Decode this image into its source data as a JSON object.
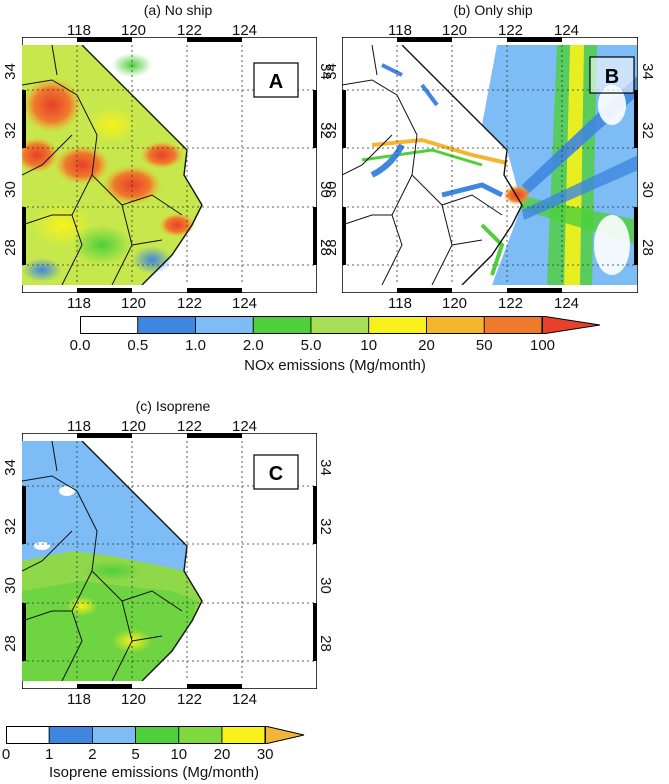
{
  "panels": {
    "a": {
      "title": "(a) No ship",
      "badge": "A"
    },
    "b": {
      "title": "(b) Only ship",
      "badge": "B"
    },
    "c": {
      "title": "(c) Isoprene",
      "badge": "C"
    }
  },
  "axes": {
    "lon_ticks": [
      "118",
      "120",
      "122",
      "124"
    ],
    "lat_ticks": [
      "34",
      "32",
      "30",
      "28"
    ]
  },
  "nox_colorbar": {
    "label": "NOx emissions (Mg/month)",
    "ticks": [
      "0.0",
      "0.5",
      "1.0",
      "2.0",
      "5.0",
      "10",
      "20",
      "50",
      "100"
    ],
    "colors": [
      "#ffffff",
      "#3f86e0",
      "#7dbcf4",
      "#4fcf3a",
      "#a7e056",
      "#f7f21c",
      "#f5b62f",
      "#ef7a2c",
      "#e8402a"
    ]
  },
  "isoprene_colorbar": {
    "label": "Isoprene emissions (Mg/month)",
    "ticks": [
      "0",
      "1",
      "2",
      "5",
      "10",
      "20",
      "30"
    ],
    "colors": [
      "#ffffff",
      "#3f86e0",
      "#7dbcf4",
      "#4fcf3a",
      "#7fd83d",
      "#f7f21c",
      "#f2b53a"
    ]
  }
}
